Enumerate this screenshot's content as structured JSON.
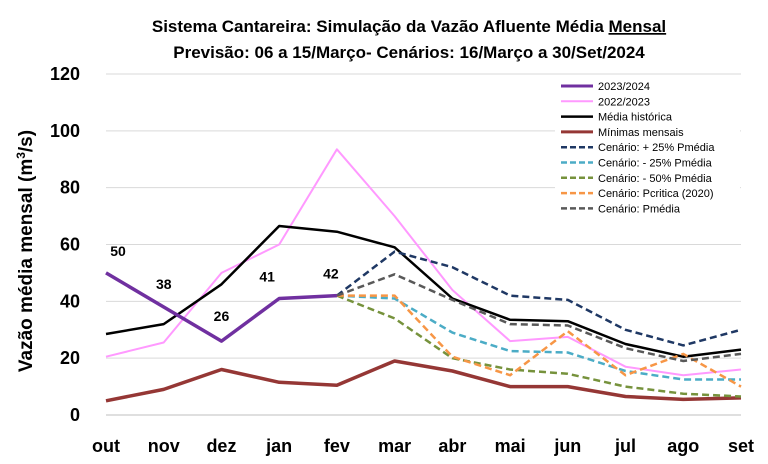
{
  "chart_data": {
    "type": "line",
    "title_line1_prefix": "Sistema Cantareira: Simulação da Vazão Afluente Média ",
    "title_line1_underlined": "Mensal",
    "title_line2": "Previsão: 06 a 15/Março- Cenários: 16/Março a 30/Set/2024",
    "ylabel_main": "Vazão média mensal (m",
    "ylabel_sup": "3",
    "ylabel_end": "/s)",
    "ylim": [
      0,
      120
    ],
    "yticks": [
      "0",
      "20",
      "40",
      "60",
      "80",
      "100",
      "120"
    ],
    "categories": [
      "out",
      "nov",
      "dez",
      "jan",
      "fev",
      "mar",
      "abr",
      "mai",
      "jun",
      "jul",
      "ago",
      "set"
    ],
    "grid": "horizontal",
    "legend_position": "top-right",
    "series": [
      {
        "name": "2023/2024",
        "color": "#7030a0",
        "dash": "solid",
        "width": 3.5,
        "values": [
          50,
          38,
          26,
          41,
          42,
          null,
          null,
          null,
          null,
          null,
          null,
          null
        ]
      },
      {
        "name": "2022/2023",
        "color": "#ff99ff",
        "dash": "solid",
        "width": 2,
        "values": [
          20.5,
          25.5,
          50,
          60,
          93.5,
          70,
          44,
          26,
          27.5,
          17,
          14,
          16
        ]
      },
      {
        "name": "Média histórica",
        "color": "#000000",
        "dash": "solid",
        "width": 2.5,
        "values": [
          28.5,
          32,
          46,
          66.5,
          64.5,
          59,
          41,
          33.5,
          33,
          25,
          20.5,
          23
        ]
      },
      {
        "name": "Mínimas mensais",
        "color": "#953735",
        "dash": "solid",
        "width": 3.5,
        "values": [
          5,
          9,
          16,
          11.5,
          10.5,
          19,
          15.5,
          10,
          10,
          6.5,
          5.5,
          6
        ]
      },
      {
        "name": "Cenário: + 25% Pmédia",
        "color": "#1f3864",
        "dash": "dashed",
        "width": 2.5,
        "values": [
          null,
          null,
          null,
          null,
          42,
          57.5,
          52,
          42,
          40.5,
          30,
          24.5,
          30
        ]
      },
      {
        "name": "Cenário: - 25% Pmédia",
        "color": "#4bacc6",
        "dash": "dashed",
        "width": 2.5,
        "values": [
          null,
          null,
          null,
          null,
          42,
          41,
          29,
          22.5,
          22,
          15.5,
          12.5,
          12.5
        ]
      },
      {
        "name": "Cenário: - 50% Pmédia",
        "color": "#76923c",
        "dash": "dashed",
        "width": 2.5,
        "values": [
          null,
          null,
          null,
          null,
          42,
          34,
          20,
          16,
          14.5,
          10,
          7.5,
          6.5
        ]
      },
      {
        "name": "Cenário: Pcritica (2020)",
        "color": "#f79646",
        "dash": "dashed",
        "width": 2.5,
        "values": [
          null,
          null,
          null,
          null,
          42,
          42,
          20.5,
          14,
          29.5,
          14,
          21.5,
          10
        ]
      },
      {
        "name": "Cenário: Pmédia",
        "color": "#595959",
        "dash": "dashed",
        "width": 2.5,
        "values": [
          null,
          null,
          null,
          null,
          42,
          49.5,
          40.5,
          32,
          31.5,
          23.5,
          19,
          21.5
        ]
      }
    ],
    "data_labels": [
      {
        "category": "out",
        "value": 50,
        "text": "50"
      },
      {
        "category": "nov",
        "value": 38,
        "text": "38"
      },
      {
        "category": "dez",
        "value": 26,
        "text": "26"
      },
      {
        "category": "jan",
        "value": 41,
        "text": "41"
      },
      {
        "category": "fev",
        "value": 42,
        "text": "42"
      }
    ]
  }
}
